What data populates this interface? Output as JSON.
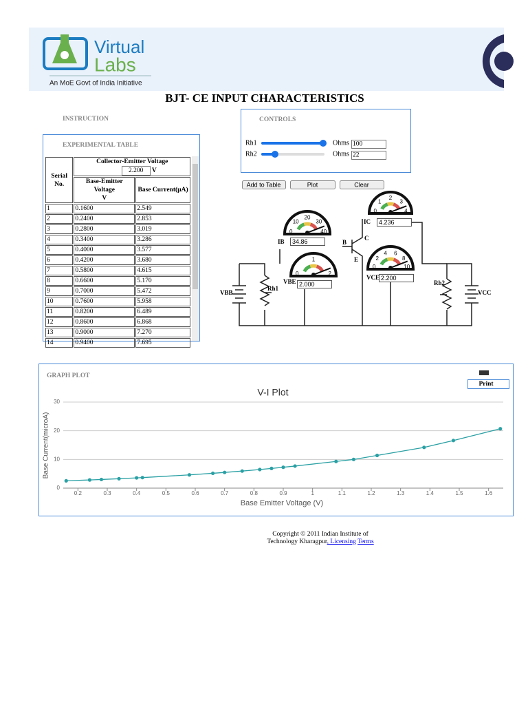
{
  "header": {
    "logo_title_1": "Virtual",
    "logo_title_2": "Labs",
    "logo_tagline": "An MoE Govt of India Initiative"
  },
  "page_title": "BJT- CE INPUT CHARACTERISTICS",
  "instruction": "INSTRUCTION",
  "controls": {
    "title": "CONTROLS",
    "sliders": [
      {
        "label": "Rh1",
        "unit": "Ohms",
        "value": "100"
      },
      {
        "label": "Rh2",
        "unit": "Ohms",
        "value": "22"
      }
    ]
  },
  "buttons": [
    "Add to Table",
    "Plot",
    "Clear"
  ],
  "table": {
    "title": "EXPERIMENTAL TABLE",
    "col_serial": "Serial No.",
    "col_group": "Collector-Emitter Voltage",
    "vce_input": "2.200",
    "vce_unit": "V",
    "col_vbe": "Base-Emitter Voltage",
    "col_vbe_unit": "V",
    "col_ib": "Base Current(µA)",
    "rows": [
      [
        "1",
        "0.1600",
        "2.549"
      ],
      [
        "2",
        "0.2400",
        "2.853"
      ],
      [
        "3",
        "0.2800",
        "3.019"
      ],
      [
        "4",
        "0.3400",
        "3.286"
      ],
      [
        "5",
        "0.4000",
        "3.577"
      ],
      [
        "6",
        "0.4200",
        "3.680"
      ],
      [
        "7",
        "0.5800",
        "4.615"
      ],
      [
        "8",
        "0.6600",
        "5.170"
      ],
      [
        "9",
        "0.7000",
        "5.472"
      ],
      [
        "10",
        "0.7600",
        "5.958"
      ],
      [
        "11",
        "0.8200",
        "6.489"
      ],
      [
        "12",
        "0.8600",
        "6.868"
      ],
      [
        "13",
        "0.9000",
        "7.270"
      ],
      [
        "14",
        "0.9400",
        "7.695"
      ]
    ]
  },
  "circuit": {
    "meters": [
      {
        "label": "IB",
        "value": "34.86",
        "scale": [
          "0",
          "10",
          "20",
          "30",
          "40"
        ]
      },
      {
        "label": "VBE",
        "value": "2.000",
        "scale": [
          "0",
          "1",
          "2"
        ]
      },
      {
        "label": "IC",
        "value": "4.236",
        "scale": [
          "0",
          "1",
          "2",
          "3",
          "4"
        ]
      },
      {
        "label": "VCE",
        "value": "2.200",
        "scale": [
          "0",
          "2",
          "4",
          "6",
          "8",
          "10"
        ]
      }
    ],
    "labels": [
      "VBB",
      "Rh1",
      "B",
      "C",
      "E",
      "Rh2",
      "VCC"
    ]
  },
  "graph_title": "GRAPH PLOT",
  "print_button": "Print",
  "chart_data": {
    "type": "line",
    "title": "V-I Plot",
    "x_label": "Base Emitter Voltage (V)",
    "y_label": "Base Current(microA)",
    "x": [
      0.16,
      0.24,
      0.28,
      0.34,
      0.4,
      0.42,
      0.58,
      0.66,
      0.7,
      0.76,
      0.82,
      0.86,
      0.9,
      0.94,
      1.08,
      1.14,
      1.22,
      1.38,
      1.48,
      1.64
    ],
    "values": [
      2.549,
      2.853,
      3.019,
      3.286,
      3.577,
      3.68,
      4.615,
      5.17,
      5.472,
      5.958,
      6.489,
      6.868,
      7.27,
      7.695,
      9.3,
      10.0,
      11.4,
      14.2,
      16.6,
      20.7
    ],
    "color": "#2aa0a4",
    "xlim": [
      0.15,
      1.65
    ],
    "ylim": [
      0,
      30
    ],
    "xticks": [
      0.2,
      0.3,
      0.4,
      0.5,
      0.6,
      0.7,
      0.8,
      0.9,
      1,
      1.1,
      1.2,
      1.3,
      1.4,
      1.5,
      1.6
    ],
    "yticks": [
      0,
      10,
      20,
      30
    ],
    "grid": true
  },
  "footer": {
    "line1": "Copyright © 2011 Indian Institute of",
    "line2": "Technology Kharagpur",
    "link1": ", Licensing",
    "link2": "Terms"
  }
}
